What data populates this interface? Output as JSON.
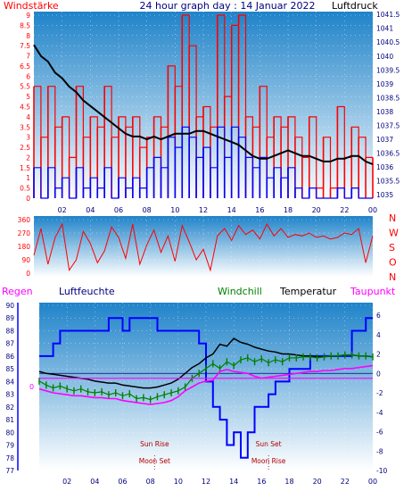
{
  "colors": {
    "red": "#ff0000",
    "blue": "#0000ff",
    "navy": "#000080",
    "black": "#000000",
    "green": "#008000",
    "magenta": "#ff00ff",
    "dark_red": "#b00000",
    "sky_top": "#1f83c9",
    "sky_bottom": "#ffffff"
  },
  "chart_data": [
    {
      "type": "line",
      "title": "24 hour graph day : 14 Januar 2022",
      "left_label": "Windstärke",
      "right_label": "Luftdruck",
      "x_ticks": [
        "02",
        "04",
        "06",
        "08",
        "10",
        "12",
        "14",
        "16",
        "18",
        "20",
        "22",
        "00"
      ],
      "x_range_hours": [
        0,
        24
      ],
      "left_axis": {
        "ticks": [
          "0",
          "0.5",
          "1",
          "1.5",
          "2",
          "2.5",
          "3",
          "3.5",
          "4",
          "4.5",
          "5",
          "5.5",
          "6",
          "6.5",
          "7",
          "7.5",
          "8",
          "8.5",
          "9"
        ],
        "range": [
          0,
          9
        ]
      },
      "right_axis": {
        "ticks": [
          "1035",
          "1035.5",
          "1036",
          "1036.5",
          "1037",
          "1037.5",
          "1038",
          "1038.5",
          "1039",
          "1039.5",
          "1040",
          "1040.5",
          "1041",
          "1041.5"
        ],
        "range": [
          1034.75,
          1041.6
        ]
      },
      "grid": true,
      "series": [
        {
          "name": "Luftdruck",
          "axis": "right",
          "color": "black",
          "x": [
            0,
            0.5,
            1,
            1.5,
            2,
            2.5,
            3,
            3.5,
            4,
            4.5,
            5,
            5.5,
            6,
            6.5,
            7,
            7.5,
            8,
            8.5,
            9,
            9.5,
            10,
            10.5,
            11,
            11.5,
            12,
            12.5,
            13,
            13.5,
            14,
            14.5,
            15,
            15.5,
            16,
            16.5,
            17,
            17.5,
            18,
            18.5,
            19,
            19.5,
            20,
            20.5,
            21,
            21.5,
            22,
            22.5,
            23,
            23.5,
            24
          ],
          "y": [
            1040.4,
            1040.0,
            1039.8,
            1039.4,
            1039.2,
            1038.9,
            1038.7,
            1038.4,
            1038.2,
            1038.0,
            1037.8,
            1037.6,
            1037.4,
            1037.2,
            1037.1,
            1037.1,
            1037.0,
            1037.1,
            1037.0,
            1037.1,
            1037.2,
            1037.2,
            1037.2,
            1037.3,
            1037.3,
            1037.2,
            1037.1,
            1037.0,
            1036.9,
            1036.8,
            1036.6,
            1036.4,
            1036.3,
            1036.3,
            1036.4,
            1036.5,
            1036.6,
            1036.5,
            1036.4,
            1036.4,
            1036.3,
            1036.2,
            1036.2,
            1036.3,
            1036.3,
            1036.4,
            1036.4,
            1036.2,
            1036.1
          ]
        },
        {
          "name": "Windstärke (gust)",
          "axis": "left",
          "color": "red",
          "x": [
            0,
            0.5,
            1,
            1.5,
            2,
            2.5,
            3,
            3.5,
            4,
            4.5,
            5,
            5.5,
            6,
            6.5,
            7,
            7.5,
            8,
            8.5,
            9,
            9.5,
            10,
            10.5,
            11,
            11.5,
            12,
            12.5,
            13,
            13.5,
            14,
            14.5,
            15,
            15.5,
            16,
            16.5,
            17,
            17.5,
            18,
            18.5,
            19,
            19.5,
            20,
            20.5,
            21,
            21.5,
            22,
            22.5,
            23,
            23.5,
            24
          ],
          "y": [
            5.5,
            3,
            5.5,
            3.5,
            4,
            2,
            5.5,
            3,
            4,
            3.5,
            5.5,
            3,
            4,
            3.5,
            4,
            2.5,
            3,
            4,
            3.5,
            6.5,
            5.5,
            9,
            7.5,
            4,
            4.5,
            3.5,
            9,
            5,
            8.5,
            9,
            4,
            3.5,
            5.5,
            3,
            4,
            3.5,
            4,
            3,
            2,
            4,
            0.5,
            3,
            0.5,
            4.5,
            2,
            3.5,
            3,
            2,
            2
          ]
        },
        {
          "name": "Windstärke (mean)",
          "axis": "left",
          "color": "blue",
          "x": [
            0,
            0.5,
            1,
            1.5,
            2,
            2.5,
            3,
            3.5,
            4,
            4.5,
            5,
            5.5,
            6,
            6.5,
            7,
            7.5,
            8,
            8.5,
            9,
            9.5,
            10,
            10.5,
            11,
            11.5,
            12,
            12.5,
            13,
            13.5,
            14,
            14.5,
            15,
            15.5,
            16,
            16.5,
            17,
            17.5,
            18,
            18.5,
            19,
            19.5,
            20,
            20.5,
            21,
            21.5,
            22,
            22.5,
            23,
            23.5,
            24
          ],
          "y": [
            1.5,
            0,
            1.5,
            0.5,
            1,
            0,
            1.5,
            0.5,
            1,
            0.5,
            1.5,
            0,
            1,
            0.5,
            1,
            0.5,
            1.5,
            2,
            1.5,
            3,
            2.5,
            3.5,
            3,
            2,
            2.5,
            1.5,
            3.5,
            2,
            3.5,
            3,
            2,
            1.5,
            2,
            1,
            1.5,
            1,
            1.5,
            0.5,
            0,
            0.5,
            0,
            0,
            0,
            0.5,
            0,
            0.5,
            0,
            0,
            0
          ]
        }
      ]
    },
    {
      "type": "line",
      "title": "",
      "left_axis": {
        "ticks": [
          "0",
          "90",
          "180",
          "270",
          "360"
        ],
        "range": [
          0,
          360
        ]
      },
      "right_labels": [
        "N",
        "W",
        "S",
        "O",
        "N"
      ],
      "x_range_hours": [
        0,
        24
      ],
      "grid": true,
      "series": [
        {
          "name": "Windrichtung",
          "color": "red",
          "x": [
            0,
            0.5,
            1,
            1.5,
            2,
            2.5,
            3,
            3.5,
            4,
            4.5,
            5,
            5.5,
            6,
            6.5,
            7,
            7.5,
            8,
            8.5,
            9,
            9.5,
            10,
            10.5,
            11,
            11.5,
            12,
            12.5,
            13,
            13.5,
            14,
            14.5,
            15,
            15.5,
            16,
            16.5,
            17,
            17.5,
            18,
            18.5,
            19,
            19.5,
            20,
            20.5,
            21,
            21.5,
            22,
            22.5,
            23,
            23.5,
            24
          ],
          "y": [
            120,
            300,
            60,
            240,
            330,
            20,
            90,
            280,
            200,
            70,
            150,
            310,
            240,
            100,
            330,
            60,
            190,
            290,
            140,
            250,
            80,
            320,
            210,
            90,
            160,
            20,
            250,
            300,
            220,
            320,
            260,
            290,
            230,
            330,
            250,
            300,
            240,
            260,
            250,
            270,
            240,
            250,
            230,
            240,
            270,
            260,
            300,
            70,
            250
          ]
        }
      ]
    },
    {
      "type": "line",
      "title": "",
      "header_labels": {
        "regen": "Regen",
        "luftfeuchte": "Luftfeuchte",
        "windchill": "Windchill",
        "temperatur": "Temperatur",
        "taupunkt": "Taupunkt"
      },
      "left_axis": {
        "ticks": [
          "77",
          "78",
          "79",
          "80",
          "81",
          "82",
          "83",
          "84",
          "85",
          "86",
          "87",
          "88",
          "89",
          "90"
        ],
        "range": [
          77,
          90
        ]
      },
      "rain_zero_label": "0",
      "right_axis": {
        "ticks": [
          "-10",
          "-8",
          "-6",
          "-4",
          "-2",
          "0",
          "2",
          "4",
          "6"
        ],
        "range": [
          -10,
          6
        ]
      },
      "x_ticks": [
        "02",
        "04",
        "06",
        "08",
        "10",
        "12",
        "14",
        "16",
        "18",
        "20",
        "22",
        "00"
      ],
      "x_range_hours": [
        0,
        24
      ],
      "grid": true,
      "annotations": [
        {
          "text": "Moon Set",
          "hour": 8.3
        },
        {
          "text": "Sun Rise",
          "hour": 8.3
        },
        {
          "text": "Moon Rise",
          "hour": 16.5
        },
        {
          "text": "Sun Set",
          "hour": 16.5
        }
      ],
      "series": [
        {
          "name": "Luftfeuchte",
          "axis": "left",
          "color": "blue",
          "x": [
            0,
            0.5,
            1,
            1.5,
            2,
            2.5,
            3,
            3.5,
            4,
            4.5,
            5,
            5.5,
            6,
            6.5,
            7,
            7.5,
            8,
            8.5,
            9,
            9.5,
            10,
            10.5,
            11,
            11.5,
            12,
            12.5,
            13,
            13.5,
            14,
            14.5,
            15,
            15.5,
            16,
            16.5,
            17,
            17.5,
            18,
            18.5,
            19,
            19.5,
            20,
            20.5,
            21,
            21.5,
            22,
            22.5,
            23,
            23.5,
            24
          ],
          "y": [
            86,
            86,
            87,
            88,
            88,
            88,
            88,
            88,
            88,
            88,
            89,
            89,
            88,
            89,
            89,
            89,
            89,
            88,
            88,
            88,
            88,
            88,
            88,
            87,
            84,
            82,
            81,
            79,
            80,
            78,
            80,
            82,
            82,
            83,
            84,
            84,
            85,
            85,
            85,
            86,
            86,
            86,
            86,
            86,
            86,
            88,
            88,
            89,
            89
          ]
        },
        {
          "name": "Temperatur",
          "axis": "right",
          "color": "black",
          "x": [
            0,
            0.5,
            1,
            1.5,
            2,
            2.5,
            3,
            3.5,
            4,
            4.5,
            5,
            5.5,
            6,
            6.5,
            7,
            7.5,
            8,
            8.5,
            9,
            9.5,
            10,
            10.5,
            11,
            11.5,
            12,
            12.5,
            13,
            13.5,
            14,
            14.5,
            15,
            15.5,
            16,
            16.5,
            17,
            17.5,
            18,
            18.5,
            19,
            19.5,
            20,
            20.5,
            21,
            21.5,
            22,
            22.5,
            23,
            23.5,
            24
          ],
          "y": [
            0.2,
            0,
            -0.1,
            -0.2,
            -0.3,
            -0.4,
            -0.5,
            -0.6,
            -0.8,
            -0.9,
            -1.0,
            -1.0,
            -1.2,
            -1.3,
            -1.4,
            -1.5,
            -1.5,
            -1.4,
            -1.2,
            -1.0,
            -0.6,
            0,
            0.6,
            1,
            1.6,
            2,
            3,
            2.8,
            3.6,
            3.2,
            3,
            2.7,
            2.5,
            2.3,
            2.2,
            2,
            2,
            1.9,
            1.8,
            1.8,
            1.7,
            1.7,
            1.8,
            1.8,
            1.9,
            1.9,
            1.8,
            1.8,
            1.7
          ]
        },
        {
          "name": "Windchill",
          "axis": "right",
          "color": "green",
          "x": [
            0,
            0.5,
            1,
            1.5,
            2,
            2.5,
            3,
            3.5,
            4,
            4.5,
            5,
            5.5,
            6,
            6.5,
            7,
            7.5,
            8,
            8.5,
            9,
            9.5,
            10,
            10.5,
            11,
            11.5,
            12,
            12.5,
            13,
            13.5,
            14,
            14.5,
            15,
            15.5,
            16,
            16.5,
            17,
            17.5,
            18,
            18.5,
            19,
            19.5,
            20,
            20.5,
            21,
            21.5,
            22,
            22.5,
            23,
            23.5,
            24
          ],
          "y": [
            -0.8,
            -1.2,
            -1.5,
            -1.3,
            -1.6,
            -1.8,
            -1.6,
            -1.9,
            -2,
            -1.9,
            -2.2,
            -2,
            -2.3,
            -2.1,
            -2.6,
            -2.5,
            -2.7,
            -2.4,
            -2.2,
            -2.0,
            -1.8,
            -1.4,
            -0.5,
            0,
            0.5,
            1,
            0.5,
            1.2,
            0.8,
            1.4,
            1.6,
            1.2,
            1.5,
            1.1,
            1.4,
            1.2,
            1.6,
            1.6,
            1.7,
            1.7,
            1.6,
            1.7,
            1.8,
            1.8,
            1.9,
            1.9,
            1.8,
            1.8,
            1.7
          ]
        },
        {
          "name": "Taupunkt",
          "axis": "right",
          "color": "magenta",
          "x": [
            0,
            0.5,
            1,
            1.5,
            2,
            2.5,
            3,
            3.5,
            4,
            4.5,
            5,
            5.5,
            6,
            6.5,
            7,
            7.5,
            8,
            8.5,
            9,
            9.5,
            10,
            10.5,
            11,
            11.5,
            12,
            12.5,
            13,
            13.5,
            14,
            14.5,
            15,
            15.5,
            16,
            16.5,
            17,
            17.5,
            18,
            18.5,
            19,
            19.5,
            20,
            20.5,
            21,
            21.5,
            22,
            22.5,
            23,
            23.5,
            24
          ],
          "y": [
            -1.6,
            -1.8,
            -2,
            -2.1,
            -2.2,
            -2.3,
            -2.3,
            -2.4,
            -2.5,
            -2.5,
            -2.6,
            -2.6,
            -2.8,
            -2.9,
            -3,
            -3.1,
            -3.2,
            -3.1,
            -3,
            -2.8,
            -2.4,
            -1.8,
            -1.4,
            -1,
            -0.8,
            -0.7,
            0.2,
            0.4,
            0.2,
            0.1,
            0,
            -0.3,
            -0.5,
            -0.4,
            -0.3,
            -0.2,
            -0.1,
            0,
            0.1,
            0.2,
            0.2,
            0.3,
            0.3,
            0.4,
            0.5,
            0.5,
            0.6,
            0.7,
            0.8
          ]
        },
        {
          "name": "Regen",
          "axis": "right",
          "color": "magenta",
          "x": [
            0,
            24
          ],
          "y": [
            -0.5,
            -0.5
          ]
        }
      ]
    }
  ]
}
